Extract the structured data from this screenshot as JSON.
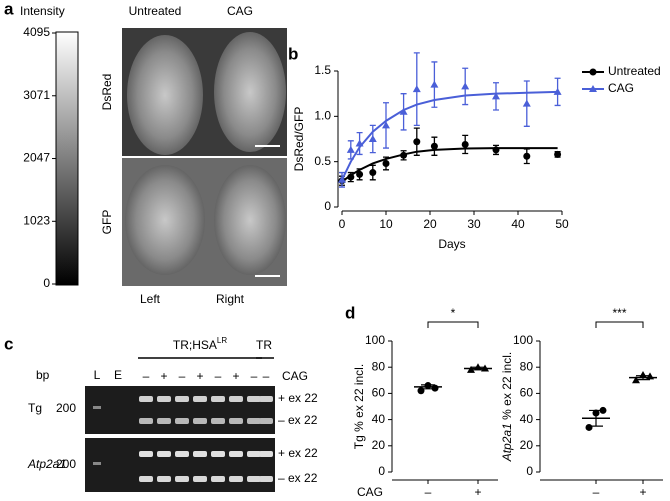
{
  "panel_labels": [
    "a",
    "b",
    "c",
    "d"
  ],
  "panel_a": {
    "colorbar_title": "Intensity",
    "colorbar_lim": [
      0,
      4095
    ],
    "colorbar_ticks": [
      0,
      1023,
      2047,
      3071,
      4095
    ],
    "columns": [
      "Untreated",
      "CAG"
    ],
    "rows": [
      "DsRed",
      "GFP"
    ],
    "sides": [
      "Left",
      "Right"
    ]
  },
  "panel_c": {
    "group_label": "TR;HSA",
    "group_superscript": "LR",
    "control_label": "TR",
    "bp_label": "bp",
    "lane_labels": [
      "L",
      "E"
    ],
    "treatment_label": "CAG",
    "lane_signs": [
      "–",
      "+",
      "–",
      "+",
      "–",
      "+",
      "–",
      "–"
    ],
    "gels": [
      {
        "gene": "Tg",
        "size": "200",
        "bands": [
          "+ ex 22",
          "– ex 22"
        ]
      },
      {
        "gene": "Atp2a1",
        "size": "200",
        "bands": [
          "+ ex 22",
          "– ex 22"
        ]
      }
    ]
  },
  "chart_data": [
    {
      "type": "line",
      "x_label": "Days",
      "y_label": "DsRed/GFP",
      "x": [
        0,
        2,
        4,
        7,
        10,
        14,
        17,
        21,
        28,
        35,
        42,
        49
      ],
      "xlim": [
        0,
        50
      ],
      "xticks": [
        0,
        10,
        20,
        30,
        40,
        50
      ],
      "ylim": [
        0,
        1.5
      ],
      "yticks": [
        0,
        0.5,
        {
          "value": 1,
          "label": "1.0"
        },
        1.5
      ],
      "series": [
        {
          "name": "Untreated",
          "color": "#000000",
          "marker": "circle",
          "values": [
            0.29,
            0.33,
            0.36,
            0.38,
            0.48,
            0.57,
            0.72,
            0.67,
            0.69,
            0.63,
            0.56,
            0.58
          ],
          "errors": [
            0.05,
            0.05,
            0.06,
            0.08,
            0.07,
            0.05,
            0.15,
            0.1,
            0.1,
            0.05,
            0.08,
            0.03
          ],
          "fit": [
            0.28,
            0.35,
            0.41,
            0.48,
            0.53,
            0.58,
            0.61,
            0.63,
            0.645,
            0.65,
            0.65,
            0.65
          ]
        },
        {
          "name": "CAG",
          "color": "#4a5fd8",
          "marker": "triangle",
          "values": [
            0.3,
            0.63,
            0.7,
            0.75,
            0.9,
            1.05,
            1.3,
            1.35,
            1.33,
            1.22,
            1.14,
            1.27
          ],
          "errors": [
            0.08,
            0.1,
            0.12,
            0.15,
            0.25,
            0.2,
            0.4,
            0.25,
            0.2,
            0.15,
            0.25,
            0.15
          ],
          "fit": [
            0.3,
            0.5,
            0.66,
            0.83,
            0.95,
            1.07,
            1.13,
            1.18,
            1.23,
            1.25,
            1.26,
            1.27
          ]
        }
      ]
    },
    {
      "type": "dot",
      "y_label": "Tg % ex 22 incl.",
      "x_label": "CAG",
      "categories": [
        "–",
        "+"
      ],
      "points": [
        [
          62,
          66,
          64
        ],
        [
          78,
          80,
          79
        ]
      ],
      "means": [
        65,
        79
      ],
      "sem": [
        1.5,
        1.0
      ],
      "ylim": [
        0,
        100
      ],
      "yticks": [
        0,
        20,
        40,
        60,
        80,
        100
      ],
      "significance": "*",
      "color": "#000000"
    },
    {
      "type": "dot",
      "y_label": [
        "Atp2a1",
        " % ex 22 incl."
      ],
      "categories": [
        "–",
        "+"
      ],
      "points": [
        [
          34,
          45,
          47
        ],
        [
          70,
          74,
          73
        ]
      ],
      "means": [
        41,
        72
      ],
      "sem": [
        6,
        1.5
      ],
      "ylim": [
        0,
        100
      ],
      "yticks": [
        0,
        20,
        40,
        60,
        80,
        100
      ],
      "significance": "***",
      "color": "#000000"
    }
  ]
}
